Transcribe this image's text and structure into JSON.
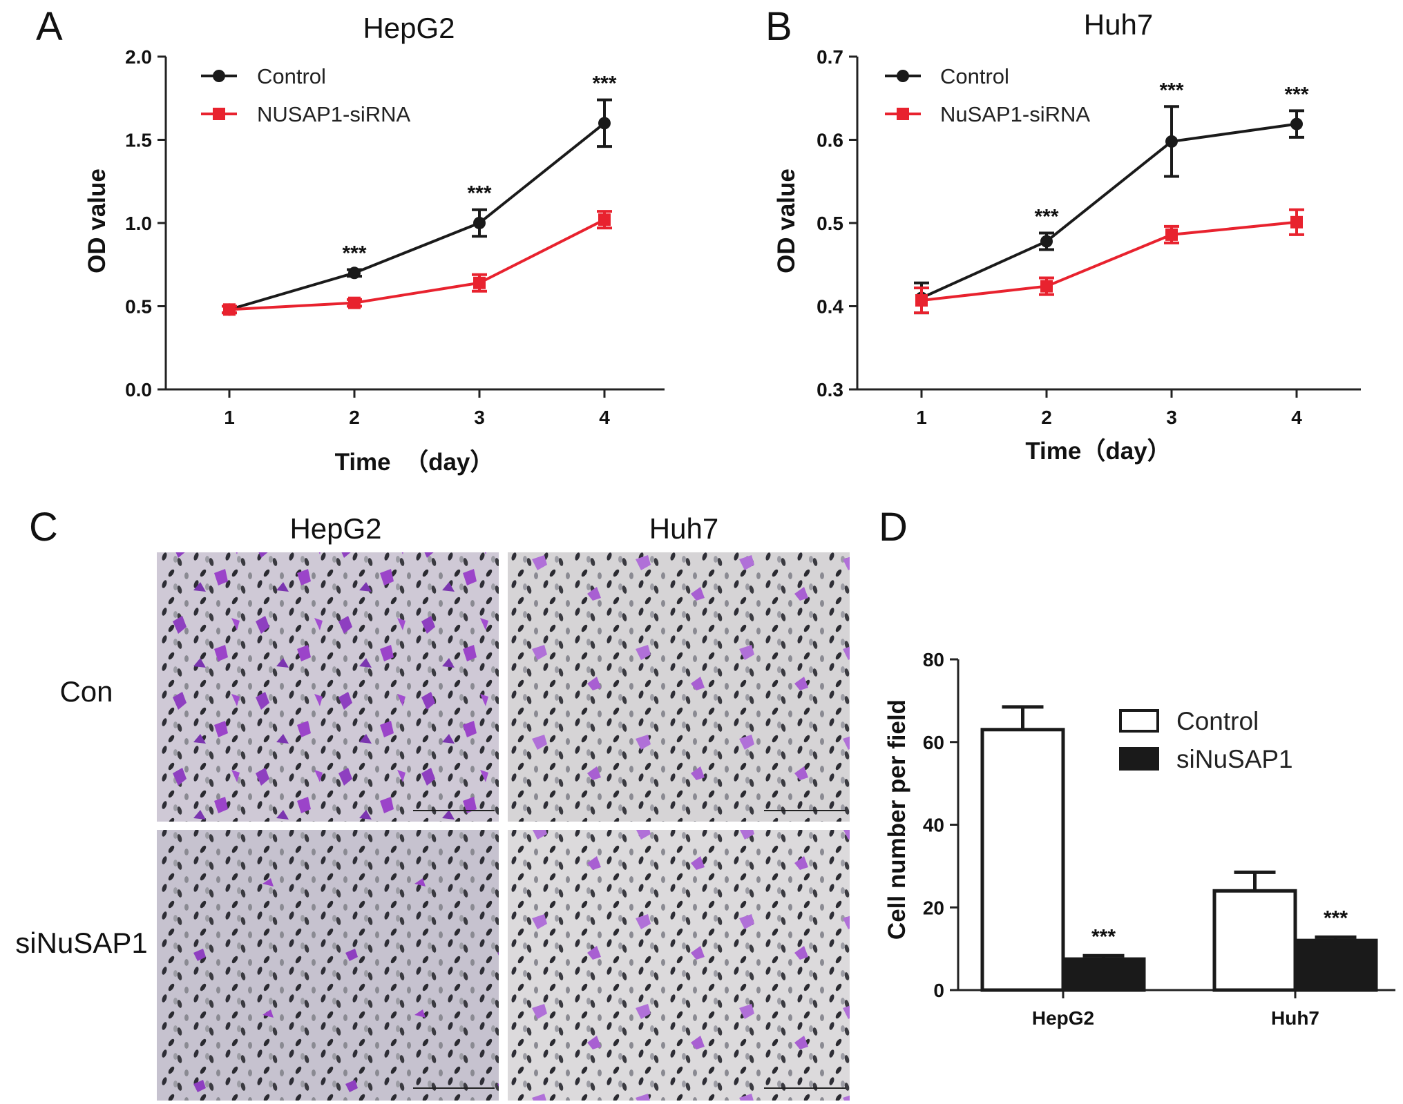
{
  "panels": {
    "a": "A",
    "b": "B",
    "c": "C",
    "d": "D"
  },
  "colors": {
    "control": "#1a1a1a",
    "sirna": "#e8222e",
    "bar_control": "#ffffff",
    "bar_si": "#1a1a1a"
  },
  "chart_data": [
    {
      "panel": "A",
      "type": "line",
      "title": "HepG2",
      "xlabel": "Time  （day）",
      "ylabel": "OD value",
      "categories": [
        "1",
        "2",
        "3",
        "4"
      ],
      "x": [
        1,
        2,
        3,
        4
      ],
      "ylim": [
        0,
        2.0
      ],
      "yticks": [
        "0.0",
        "0.5",
        "1.0",
        "1.5",
        "2.0"
      ],
      "legend": "top-left",
      "series": [
        {
          "name": "Control",
          "values": [
            0.48,
            0.7,
            1.0,
            1.6
          ],
          "errors": [
            0.02,
            0.02,
            0.08,
            0.14
          ]
        },
        {
          "name": "NUSAP1-siRNA",
          "values": [
            0.48,
            0.52,
            0.64,
            1.02
          ],
          "errors": [
            0.02,
            0.02,
            0.05,
            0.05
          ]
        }
      ],
      "annotations": [
        {
          "x": 2,
          "text": "***"
        },
        {
          "x": 3,
          "text": "***"
        },
        {
          "x": 4,
          "text": "***"
        }
      ]
    },
    {
      "panel": "B",
      "type": "line",
      "title": "Huh7",
      "xlabel": "Time（day）",
      "ylabel": "OD value",
      "categories": [
        "1",
        "2",
        "3",
        "4"
      ],
      "x": [
        1,
        2,
        3,
        4
      ],
      "ylim": [
        0.3,
        0.7
      ],
      "yticks": [
        "0.3",
        "0.4",
        "0.5",
        "0.6",
        "0.7"
      ],
      "legend": "top-left",
      "series": [
        {
          "name": "Control",
          "values": [
            0.41,
            0.478,
            0.598,
            0.619
          ],
          "errors": [
            0.018,
            0.01,
            0.042,
            0.016
          ]
        },
        {
          "name": "NuSAP1-siRNA",
          "values": [
            0.407,
            0.424,
            0.486,
            0.501
          ],
          "errors": [
            0.015,
            0.01,
            0.01,
            0.015
          ]
        }
      ],
      "annotations": [
        {
          "x": 2,
          "text": "***"
        },
        {
          "x": 3,
          "text": "***"
        },
        {
          "x": 4,
          "text": "***"
        }
      ]
    },
    {
      "panel": "D",
      "type": "bar",
      "title": "",
      "xlabel": "",
      "ylabel": "Cell number per field",
      "categories": [
        "HepG2",
        "Huh7"
      ],
      "ylim": [
        0,
        80
      ],
      "yticks": [
        "0",
        "20",
        "40",
        "60",
        "80"
      ],
      "legend": "top-right",
      "series": [
        {
          "name": "Control",
          "values": [
            63,
            24
          ],
          "errors": [
            5.5,
            4.5
          ]
        },
        {
          "name": "siNuSAP1",
          "values": [
            7.5,
            12
          ],
          "errors": [
            0.8,
            0.8
          ]
        }
      ],
      "annotations": [
        {
          "category": "HepG2",
          "series": "siNuSAP1",
          "text": "***"
        },
        {
          "category": "Huh7",
          "series": "siNuSAP1",
          "text": "***"
        }
      ]
    }
  ],
  "micrographs": {
    "columns": [
      "HepG2",
      "Huh7"
    ],
    "rows": [
      "Con",
      "siNuSAP1"
    ]
  }
}
